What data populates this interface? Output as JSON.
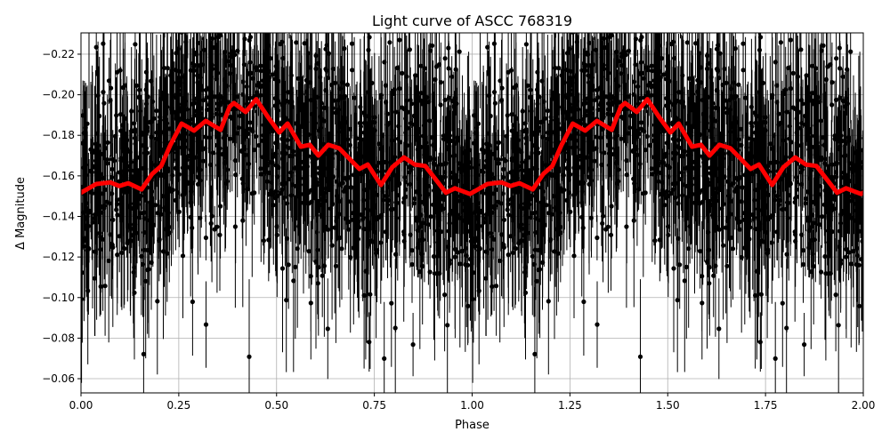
{
  "chart_data": {
    "type": "scatter",
    "title": "Light curve of ASCC 768319",
    "xlabel": "Phase",
    "ylabel": "Δ Magnitude",
    "xlim": [
      0,
      2
    ],
    "ylim": [
      -0.2305,
      -0.053
    ],
    "y_inverted": true,
    "grid": true,
    "x_ticks": [
      "0.00",
      "0.25",
      "0.50",
      "0.75",
      "1.00",
      "1.25",
      "1.50",
      "1.75",
      "2.00"
    ],
    "x_tick_values": [
      0,
      0.25,
      0.5,
      0.75,
      1,
      1.25,
      1.5,
      1.75,
      2
    ],
    "y_ticks": [
      "−0.22",
      "−0.20",
      "−0.18",
      "−0.16",
      "−0.14",
      "−0.12",
      "−0.10",
      "−0.08",
      "−0.06"
    ],
    "y_tick_values": [
      -0.22,
      -0.2,
      -0.18,
      -0.16,
      -0.14,
      -0.12,
      -0.1,
      -0.08,
      -0.06
    ],
    "periods_shown": 2,
    "observations": {
      "color": "#000000",
      "marker": "dot with error bar",
      "scatter_sigma": 0.03,
      "typical_error": 0.025
    },
    "smoothed_curve": {
      "color": "#ff0000",
      "phase": [
        0,
        0.039,
        0.075,
        0.098,
        0.121,
        0.155,
        0.182,
        0.205,
        0.228,
        0.257,
        0.289,
        0.319,
        0.357,
        0.38,
        0.391,
        0.421,
        0.448,
        0.478,
        0.507,
        0.528,
        0.562,
        0.585,
        0.607,
        0.632,
        0.66,
        0.712,
        0.733,
        0.767,
        0.796,
        0.826,
        0.853,
        0.88,
        0.933,
        0.956,
        0.994,
        1.0
      ],
      "magnitude": [
        -0.1517,
        -0.156,
        -0.1568,
        -0.155,
        -0.1564,
        -0.1533,
        -0.161,
        -0.1649,
        -0.175,
        -0.1858,
        -0.1823,
        -0.1871,
        -0.1827,
        -0.1941,
        -0.1959,
        -0.1915,
        -0.1978,
        -0.189,
        -0.1814,
        -0.1858,
        -0.1744,
        -0.1753,
        -0.17,
        -0.1753,
        -0.1736,
        -0.1634,
        -0.1656,
        -0.1555,
        -0.1643,
        -0.1691,
        -0.1656,
        -0.1649,
        -0.1517,
        -0.1539,
        -0.1511,
        -0.1517
      ]
    }
  }
}
